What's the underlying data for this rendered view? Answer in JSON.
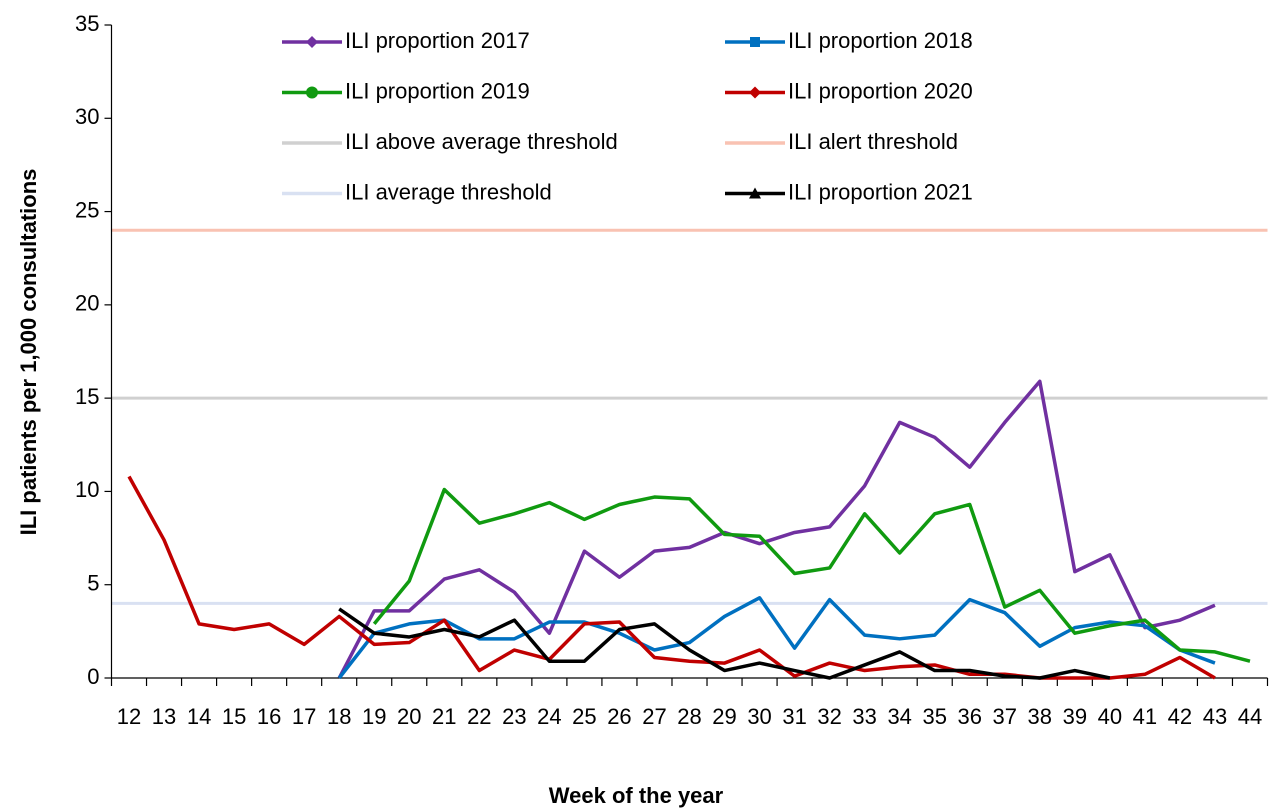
{
  "chart_data": {
    "type": "line",
    "y_label": "ILI patients per 1,000 consultations",
    "x_label": "Week of the year",
    "categories": [
      "12",
      "13",
      "14",
      "15",
      "16",
      "17",
      "18",
      "19",
      "20",
      "21",
      "22",
      "23",
      "24",
      "25",
      "26",
      "27",
      "28",
      "29",
      "30",
      "31",
      "32",
      "33",
      "34",
      "35",
      "36",
      "37",
      "38",
      "39",
      "40",
      "41",
      "42",
      "43",
      "44"
    ],
    "ylim": [
      0,
      35
    ],
    "yticks": [
      0,
      5,
      10,
      15,
      20,
      25,
      30,
      35
    ],
    "legend": "top",
    "series": [
      {
        "name": "ILI proportion 2017",
        "color": "#7030a0",
        "marker": "diamond",
        "values": [
          null,
          null,
          null,
          null,
          null,
          null,
          0,
          3.6,
          3.6,
          5.3,
          5.8,
          4.6,
          2.4,
          6.8,
          5.4,
          6.8,
          7.0,
          7.8,
          7.2,
          7.8,
          8.1,
          10.3,
          13.7,
          12.9,
          11.3,
          13.7,
          15.9,
          5.7,
          6.6,
          2.7,
          3.1,
          3.9,
          null
        ]
      },
      {
        "name": "ILI proportion 2018",
        "color": "#0070c0",
        "marker": "square",
        "values": [
          null,
          null,
          null,
          null,
          null,
          null,
          0,
          2.4,
          2.9,
          3.1,
          2.1,
          2.1,
          3.0,
          3.0,
          2.4,
          1.5,
          1.9,
          3.3,
          4.3,
          1.6,
          4.2,
          2.3,
          2.1,
          2.3,
          4.2,
          3.5,
          1.7,
          2.7,
          3.0,
          2.8,
          1.5,
          0.8,
          null
        ]
      },
      {
        "name": "ILI proportion 2019",
        "color": "#109a10",
        "marker": "circle",
        "values": [
          null,
          null,
          null,
          null,
          null,
          null,
          null,
          2.9,
          5.2,
          10.1,
          8.3,
          8.8,
          9.4,
          8.5,
          9.3,
          9.7,
          9.6,
          7.7,
          7.6,
          5.6,
          5.9,
          8.8,
          6.7,
          8.8,
          9.3,
          3.8,
          4.7,
          2.4,
          2.8,
          3.1,
          1.5,
          1.4,
          0.9
        ]
      },
      {
        "name": "ILI proportion 2020",
        "color": "#c00000",
        "marker": "diamond",
        "values": [
          10.8,
          7.4,
          2.9,
          2.6,
          2.9,
          1.8,
          3.3,
          1.8,
          1.9,
          3.1,
          0.4,
          1.5,
          1.0,
          2.9,
          3.0,
          1.1,
          0.9,
          0.8,
          1.5,
          0.1,
          0.8,
          0.4,
          0.6,
          0.7,
          0.2,
          0.2,
          0,
          0,
          0,
          0.2,
          1.1,
          0,
          null
        ]
      },
      {
        "name": "ILI above average threshold",
        "color": "#d0d0d0",
        "value": 15
      },
      {
        "name": "ILI alert threshold",
        "color": "#f9c2b2",
        "value": 24
      },
      {
        "name": "ILI average threshold",
        "color": "#d9e1f2",
        "value": 4
      },
      {
        "name": "ILI proportion 2021",
        "color": "#000000",
        "marker": "triangle",
        "values": [
          null,
          null,
          null,
          null,
          null,
          null,
          3.7,
          2.4,
          2.2,
          2.6,
          2.2,
          3.1,
          0.9,
          0.9,
          2.6,
          2.9,
          1.5,
          0.4,
          0.8,
          0.4,
          0,
          0.7,
          1.4,
          0.4,
          0.4,
          0.1,
          0,
          0.4,
          0,
          null,
          null,
          null,
          null
        ]
      }
    ]
  }
}
